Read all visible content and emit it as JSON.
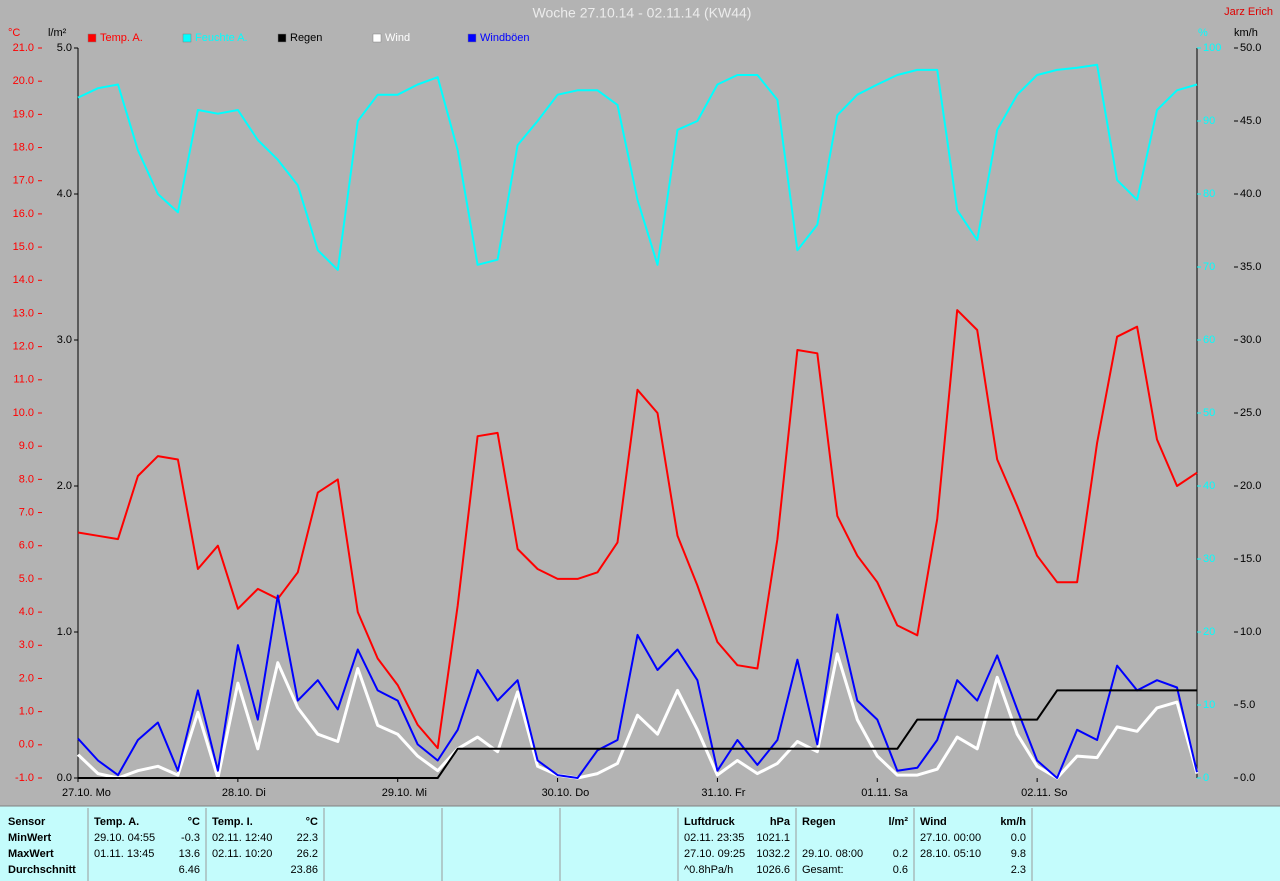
{
  "chart_data": {
    "type": "line",
    "title": "Woche 27.10.14 - 02.11.14 (KW44)",
    "author": "Jarz Erich",
    "ylabel": "°C",
    "y2label": "l/m²",
    "y3label": "%",
    "y4label": "km/h",
    "xlim": [
      0,
      168
    ],
    "xticks": [
      {
        "value": 0,
        "label": "27.10. Mo"
      },
      {
        "value": 24,
        "label": "28.10. Di"
      },
      {
        "value": 48,
        "label": "29.10. Mi"
      },
      {
        "value": 72,
        "label": "30.10. Do"
      },
      {
        "value": 96,
        "label": "31.10. Fr"
      },
      {
        "value": 120,
        "label": "01.11. Sa"
      },
      {
        "value": 144,
        "label": "02.11. So"
      }
    ],
    "ylim": [
      -1,
      21
    ],
    "yticks": [
      {
        "value": -1,
        "label": "-1.0"
      },
      {
        "value": 0,
        "label": "0.0"
      },
      {
        "value": 1,
        "label": "1.0"
      },
      {
        "value": 2,
        "label": "2.0"
      },
      {
        "value": 3,
        "label": "3.0"
      },
      {
        "value": 4,
        "label": "4.0"
      },
      {
        "value": 5,
        "label": "5.0"
      },
      {
        "value": 6,
        "label": "6.0"
      },
      {
        "value": 7,
        "label": "7.0"
      },
      {
        "value": 8,
        "label": "8.0"
      },
      {
        "value": 9,
        "label": "9.0"
      },
      {
        "value": 10,
        "label": "10.0"
      },
      {
        "value": 11,
        "label": "11.0"
      },
      {
        "value": 12,
        "label": "12.0"
      },
      {
        "value": 13,
        "label": "13.0"
      },
      {
        "value": 14,
        "label": "14.0"
      },
      {
        "value": 15,
        "label": "15.0"
      },
      {
        "value": 16,
        "label": "16.0"
      },
      {
        "value": 17,
        "label": "17.0"
      },
      {
        "value": 18,
        "label": "18.0"
      },
      {
        "value": 19,
        "label": "19.0"
      },
      {
        "value": 20,
        "label": "20.0"
      },
      {
        "value": 21,
        "label": "21.0"
      }
    ],
    "y2lim": [
      0,
      5
    ],
    "y2ticks": [
      {
        "value": 0,
        "label": "0.0"
      },
      {
        "value": 1,
        "label": "1.0"
      },
      {
        "value": 2,
        "label": "2.0"
      },
      {
        "value": 3,
        "label": "3.0"
      },
      {
        "value": 4,
        "label": "4.0"
      },
      {
        "value": 5,
        "label": "5.0"
      }
    ],
    "y3lim": [
      0,
      100
    ],
    "y3ticks": [
      0,
      10,
      20,
      30,
      40,
      50,
      60,
      70,
      80,
      90,
      100
    ],
    "y4lim": [
      0,
      50
    ],
    "y4ticks": [
      {
        "value": 0,
        "label": "0.0"
      },
      {
        "value": 5,
        "label": "5.0"
      },
      {
        "value": 10,
        "label": "10.0"
      },
      {
        "value": 15,
        "label": "15.0"
      },
      {
        "value": 20,
        "label": "20.0"
      },
      {
        "value": 25,
        "label": "25.0"
      },
      {
        "value": 30,
        "label": "30.0"
      },
      {
        "value": 35,
        "label": "35.0"
      },
      {
        "value": 40,
        "label": "40.0"
      },
      {
        "value": 45,
        "label": "45.0"
      },
      {
        "value": 50,
        "label": "50.0"
      }
    ],
    "x": [
      0,
      3,
      6,
      9,
      12,
      15,
      18,
      21,
      24,
      27,
      30,
      33,
      36,
      39,
      42,
      45,
      48,
      51,
      54,
      57,
      60,
      63,
      66,
      69,
      72,
      75,
      78,
      81,
      84,
      87,
      90,
      93,
      96,
      99,
      102,
      105,
      108,
      111,
      114,
      117,
      120,
      123,
      126,
      129,
      132,
      135,
      138,
      141,
      144,
      147,
      150,
      153,
      156,
      159,
      162,
      165,
      168
    ],
    "series": [
      {
        "name": "Temp. A.",
        "color": "#ff0000",
        "axis": "y",
        "values": [
          6.4,
          6.3,
          6.2,
          8.1,
          8.7,
          8.6,
          5.3,
          6.0,
          4.1,
          4.7,
          4.4,
          5.2,
          7.6,
          8.0,
          4.0,
          2.6,
          1.8,
          0.6,
          -0.1,
          4.2,
          9.3,
          9.4,
          5.9,
          5.3,
          5.0,
          5.0,
          5.2,
          6.1,
          10.7,
          10.0,
          6.3,
          4.8,
          3.1,
          2.4,
          2.3,
          6.2,
          11.9,
          11.8,
          6.9,
          5.7,
          4.9,
          3.6,
          3.3,
          6.8,
          13.1,
          12.5,
          8.6,
          7.2,
          5.7,
          4.9,
          4.9,
          9.1,
          12.3,
          12.6,
          9.2,
          7.8,
          8.2
        ]
      },
      {
        "name": "Feuchte A.",
        "color": "#00ffff",
        "axis": "y3",
        "values": [
          93.2,
          94.5,
          95,
          86,
          80,
          77.5,
          91.5,
          91,
          91.5,
          87.4,
          84.7,
          81.2,
          72.3,
          69.6,
          90,
          93.6,
          93.6,
          95,
          96,
          86,
          70.3,
          71,
          86.7,
          90,
          93.6,
          94.2,
          94.2,
          92.2,
          79.2,
          70.3,
          88.8,
          90,
          95,
          96.3,
          96.3,
          92.9,
          72.3,
          75.8,
          90.8,
          93.6,
          95,
          96.3,
          97,
          97,
          77.8,
          73.7,
          88.8,
          93.6,
          96.3,
          97,
          97.3,
          97.7,
          81.9,
          79.2,
          91.5,
          94.2,
          95
        ]
      },
      {
        "name": "Regen",
        "color": "#000000",
        "axis": "y2",
        "values": [
          0,
          0,
          0,
          0,
          0,
          0,
          0,
          0,
          0,
          0,
          0,
          0,
          0,
          0,
          0,
          0,
          0,
          0,
          0,
          0.2,
          0.2,
          0.2,
          0.2,
          0.2,
          0.2,
          0.2,
          0.2,
          0.2,
          0.2,
          0.2,
          0.2,
          0.2,
          0.2,
          0.2,
          0.2,
          0.2,
          0.2,
          0.2,
          0.2,
          0.2,
          0.2,
          0.2,
          0.4,
          0.4,
          0.4,
          0.4,
          0.4,
          0.4,
          0.4,
          0.6,
          0.6,
          0.6,
          0.6,
          0.6,
          0.6,
          0.6,
          0.6
        ]
      },
      {
        "name": "Wind",
        "color": "#ffffff",
        "axis": "y4",
        "values": [
          1.6,
          0.3,
          0,
          0.5,
          0.8,
          0.2,
          4.5,
          0,
          6.5,
          2.0,
          7.9,
          4.8,
          3.0,
          2.5,
          7.5,
          3.6,
          3.0,
          1.5,
          0.5,
          2.0,
          2.8,
          1.8,
          5.9,
          0.8,
          0.2,
          0,
          0.3,
          1.0,
          4.3,
          3.0,
          6.0,
          3.3,
          0.2,
          1.2,
          0.3,
          1.0,
          2.5,
          1.8,
          8.5,
          4.0,
          1.5,
          0.2,
          0.2,
          0.6,
          2.8,
          2.0,
          6.9,
          3.0,
          0.8,
          0,
          1.5,
          1.4,
          3.5,
          3.2,
          4.8,
          5.2,
          0.3
        ]
      },
      {
        "name": "Windböen",
        "color": "#0000ff",
        "axis": "y4",
        "values": [
          2.7,
          1.2,
          0.2,
          2.6,
          3.8,
          0.5,
          6.0,
          0.5,
          9.1,
          4.0,
          12.5,
          5.3,
          6.7,
          4.7,
          8.8,
          6.0,
          5.3,
          2.3,
          1.2,
          3.3,
          7.4,
          5.3,
          6.7,
          1.2,
          0.2,
          0,
          1.9,
          2.6,
          9.8,
          7.4,
          8.8,
          6.7,
          0.5,
          2.6,
          0.9,
          2.6,
          8.1,
          2.3,
          11.2,
          5.3,
          4.0,
          0.5,
          0.7,
          2.6,
          6.7,
          5.3,
          8.4,
          4.7,
          1.2,
          0,
          3.3,
          2.6,
          7.7,
          6.0,
          6.7,
          6.2,
          0.4
        ]
      }
    ]
  },
  "stats": {
    "sensor": {
      "header": "Sensor",
      "rows": [
        "MinWert",
        "MaxWert",
        "Durchschnitt"
      ]
    },
    "groups": [
      {
        "name": "Temp. A.",
        "unit": "°C",
        "rows": [
          {
            "time": "29.10.  04:55",
            "value": "-0.3"
          },
          {
            "time": "01.11.  13:45",
            "value": "13.6"
          },
          {
            "value": "6.46"
          }
        ]
      },
      {
        "name": "Temp. I.",
        "unit": "°C",
        "rows": [
          {
            "time": "02.11.  12:40",
            "value": "22.3"
          },
          {
            "time": "02.11.  10:20",
            "value": "26.2"
          },
          {
            "value": "23.86"
          }
        ]
      },
      {
        "name": "Luftdruck",
        "unit": "hPa",
        "rows": [
          {
            "time": "02.11.  23:35",
            "value": "1021.1"
          },
          {
            "time": "27.10.  09:25",
            "value": "1032.2"
          },
          {
            "time": "^0.8hPa/h",
            "value": "1026.6"
          }
        ]
      },
      {
        "name": "Regen",
        "unit": "l/m²",
        "rows": [
          null,
          {
            "time": "29.10.  08:00",
            "value": "0.2"
          },
          {
            "time": "Gesamt:",
            "value": "0.6"
          }
        ]
      },
      {
        "name": "Wind",
        "unit": "km/h",
        "rows": [
          {
            "time": "27.10.  00:00",
            "value": "0.0"
          },
          {
            "time": "28.10.  05:10",
            "value": "9.8"
          },
          {
            "value": "2.3"
          }
        ]
      }
    ]
  }
}
